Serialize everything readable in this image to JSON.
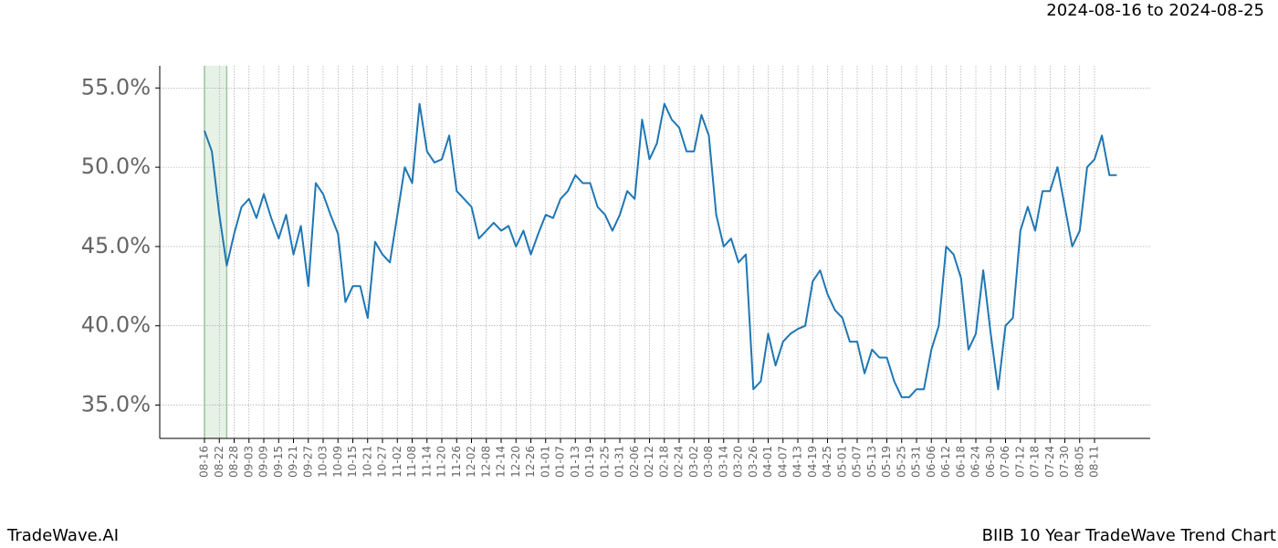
{
  "header": "2024-08-16 to 2024-08-25",
  "footer_left": "TradeWave.AI",
  "footer_right": "BIIB 10 Year TradeWave Trend Chart",
  "chart_data": {
    "type": "line",
    "categories": [
      "08-16",
      null,
      "08-22",
      null,
      "08-28",
      null,
      "09-03",
      null,
      "09-09",
      null,
      "09-15",
      null,
      "09-21",
      null,
      "09-27",
      null,
      "10-03",
      null,
      "10-09",
      null,
      "10-15",
      null,
      "10-21",
      null,
      "10-27",
      null,
      "11-02",
      null,
      "11-08",
      null,
      "11-14",
      null,
      "11-20",
      null,
      "11-26",
      null,
      "12-02",
      null,
      "12-08",
      null,
      "12-14",
      null,
      "12-20",
      null,
      "12-26",
      null,
      "01-01",
      null,
      "01-07",
      null,
      "01-13",
      null,
      "01-19",
      null,
      "01-25",
      null,
      "01-31",
      null,
      "02-06",
      null,
      "02-12",
      null,
      "02-18",
      null,
      "02-24",
      null,
      "03-02",
      null,
      "03-08",
      null,
      "03-14",
      null,
      "03-20",
      null,
      "03-26",
      null,
      "04-01",
      null,
      "04-07",
      null,
      "04-13",
      null,
      "04-19",
      null,
      "04-25",
      null,
      "05-01",
      null,
      "05-07",
      null,
      "05-13",
      null,
      "05-19",
      null,
      "05-25",
      null,
      "05-31",
      null,
      "06-06",
      null,
      "06-12",
      null,
      "06-18",
      null,
      "06-24",
      null,
      "06-30",
      null,
      "07-06",
      null,
      "07-12",
      null,
      "07-18",
      null,
      "07-24",
      null,
      "07-30",
      null,
      "08-05",
      null,
      "08-11",
      null,
      null,
      null
    ],
    "series": [
      {
        "color": "#1f77b4",
        "values": [
          52.3,
          51.0,
          47.0,
          43.8,
          45.8,
          47.5,
          48.0,
          46.8,
          48.3,
          46.8,
          45.5,
          47.0,
          44.5,
          46.3,
          42.5,
          49.0,
          48.3,
          47.0,
          45.8,
          41.5,
          42.5,
          42.5,
          40.5,
          45.3,
          44.5,
          44.0,
          47.0,
          50.0,
          49.0,
          54.0,
          51.0,
          50.3,
          50.5,
          52.0,
          48.5,
          48.0,
          47.5,
          45.5,
          46.0,
          46.5,
          46.0,
          46.3,
          45.0,
          46.0,
          44.5,
          45.8,
          47.0,
          46.8,
          48.0,
          48.5,
          49.5,
          49.0,
          49.0,
          47.5,
          47.0,
          46.0,
          47.0,
          48.5,
          48.0,
          53.0,
          50.5,
          51.5,
          54.0,
          53.0,
          52.5,
          51.0,
          51.0,
          53.3,
          52.0,
          47.0,
          45.0,
          45.5,
          44.0,
          44.5,
          36.0,
          36.5,
          39.5,
          37.5,
          39.0,
          39.5,
          39.8,
          40.0,
          42.8,
          43.5,
          42.0,
          41.0,
          40.5,
          39.0,
          39.0,
          37.0,
          38.5,
          38.0,
          38.0,
          36.5,
          35.5,
          35.5,
          36.0,
          36.0,
          38.5,
          40.0,
          45.0,
          44.5,
          43.0,
          38.5,
          39.5,
          43.5,
          39.5,
          36.0,
          40.0,
          40.5,
          46.0,
          47.5,
          46.0,
          48.5,
          48.5,
          50.0,
          47.5,
          45.0,
          46.0,
          50.0,
          50.5,
          52.0,
          49.5,
          49.5
        ]
      }
    ],
    "ylim": [
      32.9,
      56.4
    ],
    "yticks": [
      {
        "value": 35,
        "label": "35.0%"
      },
      {
        "value": 40,
        "label": "40.0%"
      },
      {
        "value": 45,
        "label": "45.0%"
      },
      {
        "value": 50,
        "label": "50.0%"
      },
      {
        "value": 55,
        "label": "55.0%"
      }
    ],
    "grid": true,
    "shade_range": [
      0,
      3
    ],
    "shade_color": "#e6f2e6"
  }
}
